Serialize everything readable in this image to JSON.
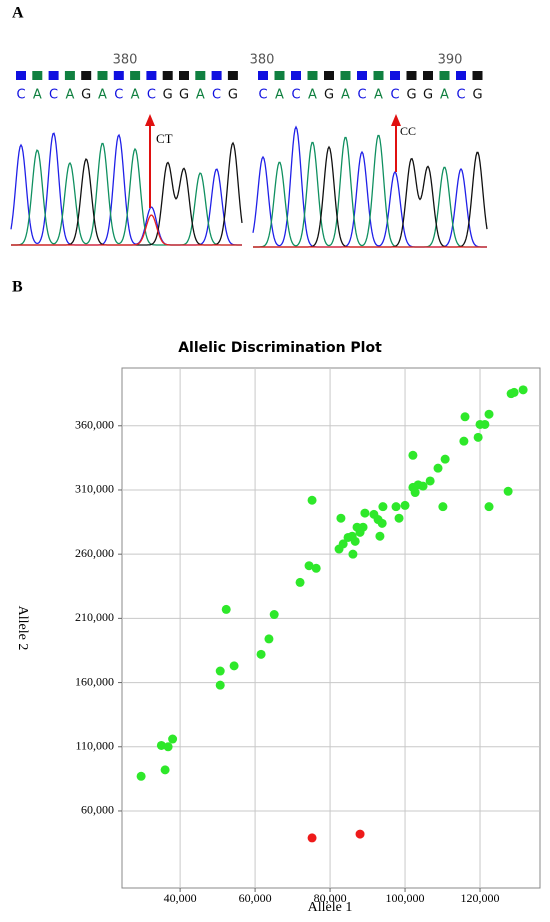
{
  "panel_a": {
    "label": "A",
    "left": {
      "position_label": "380",
      "bases": [
        "C",
        "A",
        "C",
        "A",
        "G",
        "A",
        "C",
        "A",
        "C",
        "G",
        "G",
        "A",
        "C",
        "G"
      ],
      "call": "CT"
    },
    "right": {
      "position_labels": [
        "380",
        "390"
      ],
      "bases": [
        "C",
        "A",
        "C",
        "A",
        "G",
        "A",
        "C",
        "A",
        "C",
        "G",
        "G",
        "A",
        "C",
        "G"
      ],
      "call": "CC"
    }
  },
  "panel_b": {
    "label": "B"
  },
  "chart_data": {
    "type": "scatter",
    "title": "Allelic Discrimination Plot",
    "x_label": "Allele 1",
    "y_label": "Allele 2",
    "xlim": [
      24500,
      136000
    ],
    "ylim": [
      0,
      405000
    ],
    "xticks": [
      {
        "value": 40000,
        "label": "40,000"
      },
      {
        "value": 60000,
        "label": "60,000"
      },
      {
        "value": 80000,
        "label": "80,000"
      },
      {
        "value": 100000,
        "label": "100,000"
      },
      {
        "value": 120000,
        "label": "120,000"
      }
    ],
    "yticks": [
      {
        "value": 60000,
        "label": "60,000"
      },
      {
        "value": 110000,
        "label": "110,000"
      },
      {
        "value": 160000,
        "label": "160,000"
      },
      {
        "value": 210000,
        "label": "210,000"
      },
      {
        "value": 260000,
        "label": "260,000"
      },
      {
        "value": 310000,
        "label": "310,000"
      },
      {
        "value": 360000,
        "label": "360,000"
      }
    ],
    "grid": true,
    "series": [
      {
        "color": "#2ee82a",
        "x": [
          29600,
          35000,
          36800,
          38000,
          36000,
          50700,
          50700,
          52300,
          54400,
          61600,
          63700,
          65100,
          72000,
          74400,
          76300,
          75200,
          82900,
          82400,
          83500,
          84800,
          85900,
          86700,
          87200,
          88000,
          86100,
          88800,
          89300,
          91700,
          92800,
          93300,
          94100,
          93900,
          97600,
          98400,
          100000,
          102100,
          102700,
          103500,
          104800,
          106700,
          108800,
          110700,
          110100,
          102100,
          116000,
          115700,
          119500,
          120000,
          121300,
          122400,
          128300,
          129100,
          131500,
          127500,
          122400
        ],
        "values": [
          87000,
          111000,
          110000,
          116000,
          92000,
          158000,
          169000,
          217000,
          173000,
          182000,
          194000,
          213000,
          238000,
          251000,
          249000,
          302000,
          288000,
          264000,
          268000,
          273000,
          274000,
          270000,
          281000,
          277000,
          260000,
          281000,
          292000,
          291000,
          287000,
          274000,
          297000,
          284000,
          297000,
          288000,
          298000,
          312000,
          308000,
          314000,
          313000,
          317000,
          327000,
          334000,
          297000,
          337000,
          367000,
          348000,
          351000,
          361000,
          361000,
          369000,
          385000,
          386000,
          388000,
          309000,
          297000
        ]
      },
      {
        "color": "#ee1a1a",
        "x": [
          75200,
          88000
        ],
        "values": [
          39000,
          42000
        ]
      }
    ]
  }
}
